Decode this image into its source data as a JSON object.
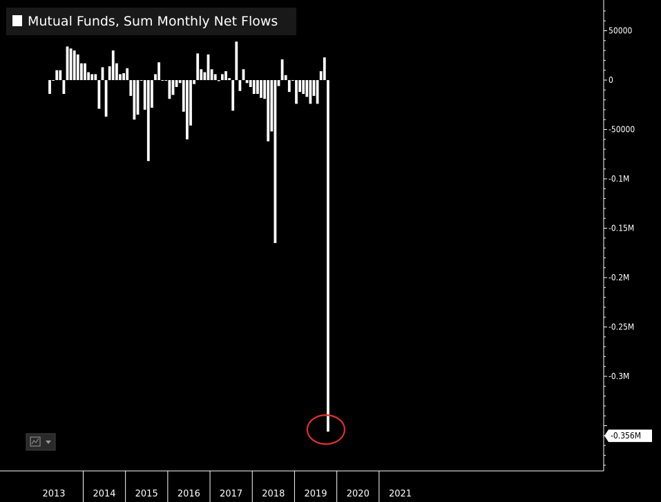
{
  "chart_data": {
    "type": "bar",
    "title": "Mutual Funds, Sum Monthly Net Flows",
    "legend": {
      "label": "Mutual Funds, Sum Monthly Net Flows",
      "placement": "top-left",
      "swatch_color": "#ffffff"
    },
    "bar_color": "#ffffff",
    "background_color": "#000000",
    "annotation_circle_color": "#e03030",
    "ylim": [
      -420000,
      75000
    ],
    "y_axis_position": "right",
    "y_ticks": [
      {
        "value": 50000,
        "label": "50000"
      },
      {
        "value": 0,
        "label": "0"
      },
      {
        "value": -50000,
        "label": "-50000"
      },
      {
        "value": -100000,
        "label": "-0.1M"
      },
      {
        "value": -150000,
        "label": "-0.15M"
      },
      {
        "value": -200000,
        "label": "-0.2M"
      },
      {
        "value": -250000,
        "label": "-0.25M"
      },
      {
        "value": -300000,
        "label": "-0.3M"
      }
    ],
    "last_value_label": {
      "value": -356000,
      "label": "-0.356M"
    },
    "x_year_labels": [
      "2013",
      "2014",
      "2015",
      "2016",
      "2017",
      "2018",
      "2019",
      "2020",
      "2021"
    ],
    "x_start": "2013-03",
    "values": [
      -14000,
      0,
      10000,
      10000,
      -14000,
      34000,
      32000,
      30000,
      26000,
      17000,
      17000,
      8000,
      6000,
      6000,
      -29000,
      13000,
      -37000,
      14000,
      30000,
      17000,
      6000,
      7000,
      12000,
      -16000,
      -40000,
      -35000,
      0,
      -30000,
      -82000,
      -28000,
      6000,
      18000,
      0,
      0,
      -19000,
      -15000,
      -7000,
      -3000,
      -32000,
      -60000,
      -46000,
      -4000,
      27000,
      11000,
      8000,
      26000,
      11000,
      6000,
      -1000,
      6000,
      9000,
      2000,
      -31000,
      39000,
      -11000,
      11000,
      -3000,
      -7000,
      -14000,
      -14000,
      -18000,
      -19000,
      -62000,
      -52000,
      -165000,
      -6000,
      21000,
      5000,
      -12000,
      0,
      -24000,
      -12000,
      -14000,
      -17000,
      -24000,
      -16000,
      -24000,
      9000,
      23000,
      -356000
    ]
  }
}
